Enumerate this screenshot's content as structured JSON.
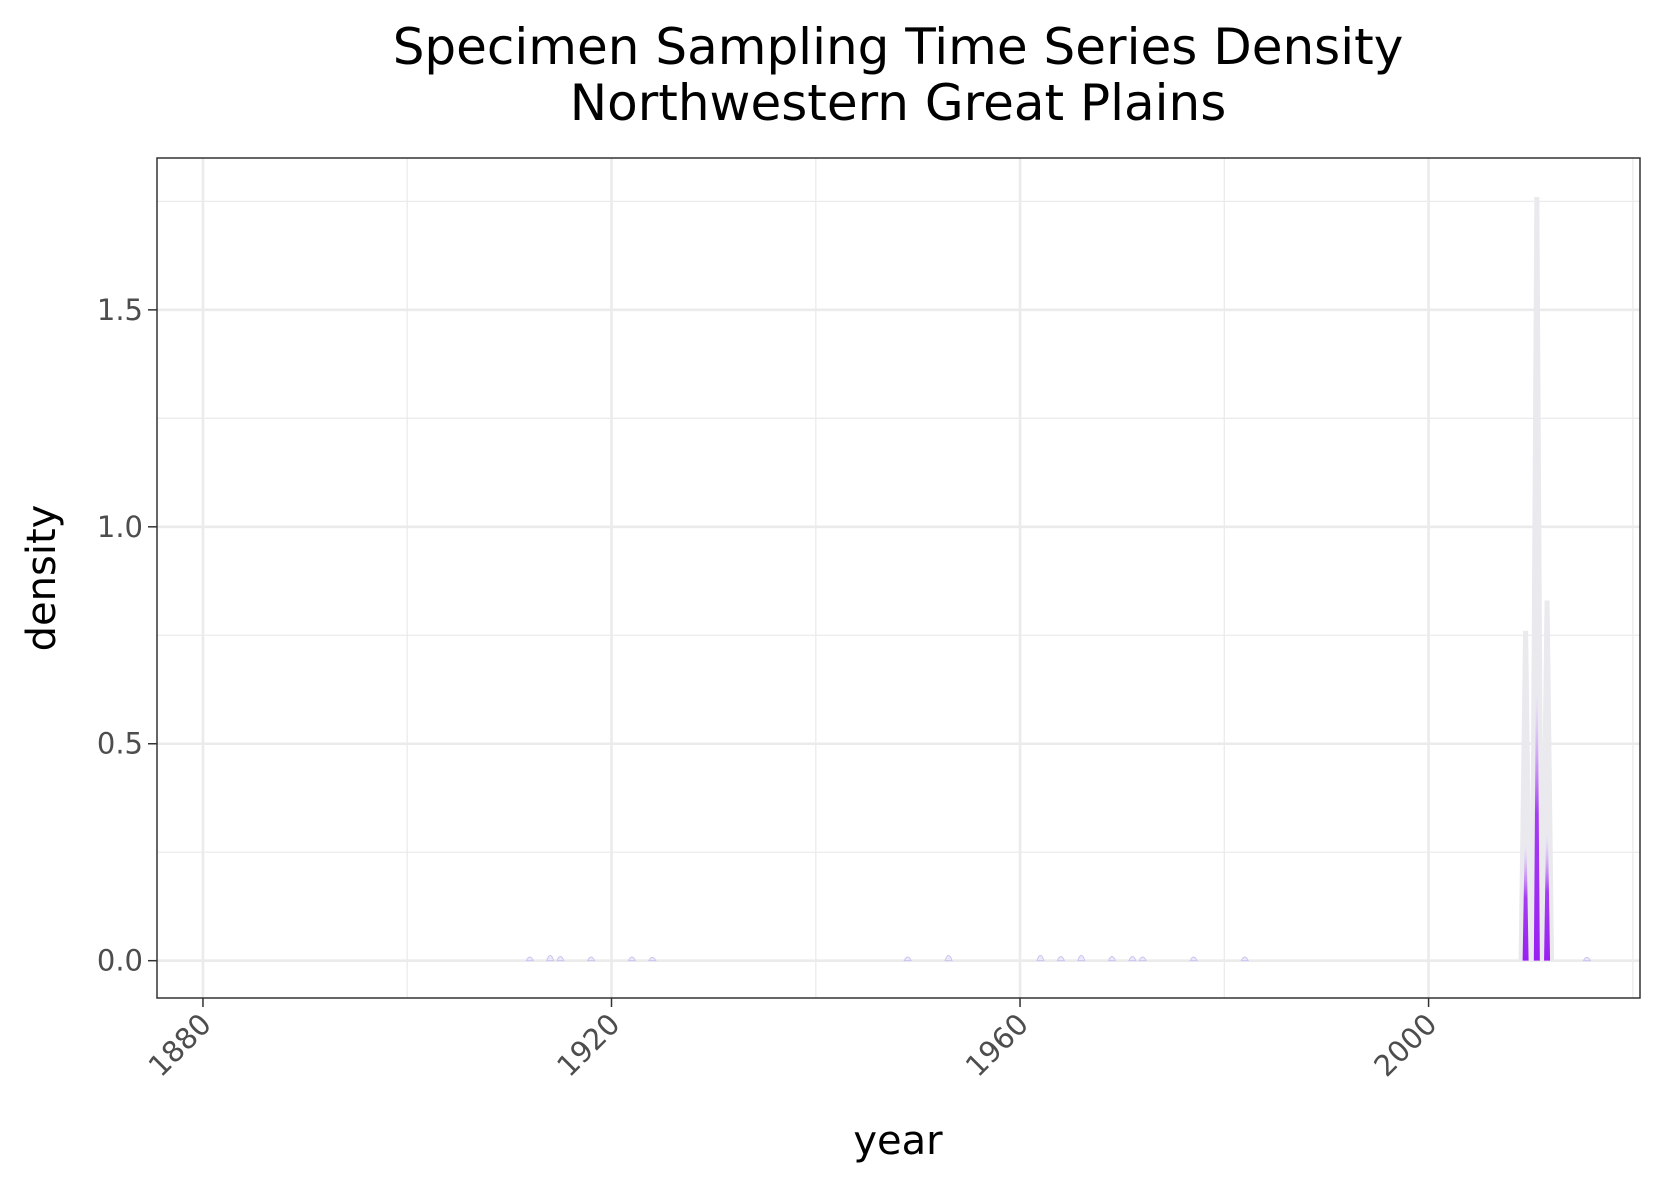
{
  "chart_data": {
    "type": "area",
    "title": "Specimen Sampling Time Series Density",
    "subtitle": "Northwestern Great Plains",
    "xlabel": "year",
    "ylabel": "density",
    "xlim": [
      1875.5,
      2020.7
    ],
    "ylim": [
      -0.086,
      1.85
    ],
    "x_ticks": [
      1880,
      1920,
      1960,
      2000
    ],
    "x_tick_labels": [
      "1880",
      "1920",
      "1960",
      "2000"
    ],
    "y_ticks": [
      0.0,
      0.5,
      1.0,
      1.5
    ],
    "y_tick_labels": [
      "0.0",
      "0.5",
      "1.0",
      "1.5"
    ],
    "x_minor_ticks": [
      1900,
      1940,
      1980,
      2020
    ],
    "y_minor_ticks": [
      0.25,
      0.75,
      1.25,
      1.75
    ],
    "grid": true,
    "legend": "none",
    "colors": {
      "fill_low": "#ede9fb",
      "fill_high": "#9a1ff2",
      "band": "#e9e9ee",
      "grid": "#ebebeb",
      "panel_border": "#333333"
    },
    "series": [
      {
        "peaks": [
          {
            "x": 1912,
            "y": 0.008
          },
          {
            "x": 1914,
            "y": 0.015
          },
          {
            "x": 1915,
            "y": 0.01
          },
          {
            "x": 1918,
            "y": 0.008
          },
          {
            "x": 1922,
            "y": 0.008
          },
          {
            "x": 1924,
            "y": 0.006
          },
          {
            "x": 1949,
            "y": 0.008
          },
          {
            "x": 1953,
            "y": 0.015
          },
          {
            "x": 1962,
            "y": 0.015
          },
          {
            "x": 1964,
            "y": 0.01
          },
          {
            "x": 1966,
            "y": 0.015
          },
          {
            "x": 1969,
            "y": 0.01
          },
          {
            "x": 1971,
            "y": 0.01
          },
          {
            "x": 1972,
            "y": 0.008
          },
          {
            "x": 1977,
            "y": 0.008
          },
          {
            "x": 1982,
            "y": 0.008
          },
          {
            "x": 2009.5,
            "y": 0.76
          },
          {
            "x": 2010.6,
            "y": 1.76
          },
          {
            "x": 2011.6,
            "y": 0.83
          },
          {
            "x": 2015.5,
            "y": 0.006
          }
        ]
      }
    ]
  }
}
